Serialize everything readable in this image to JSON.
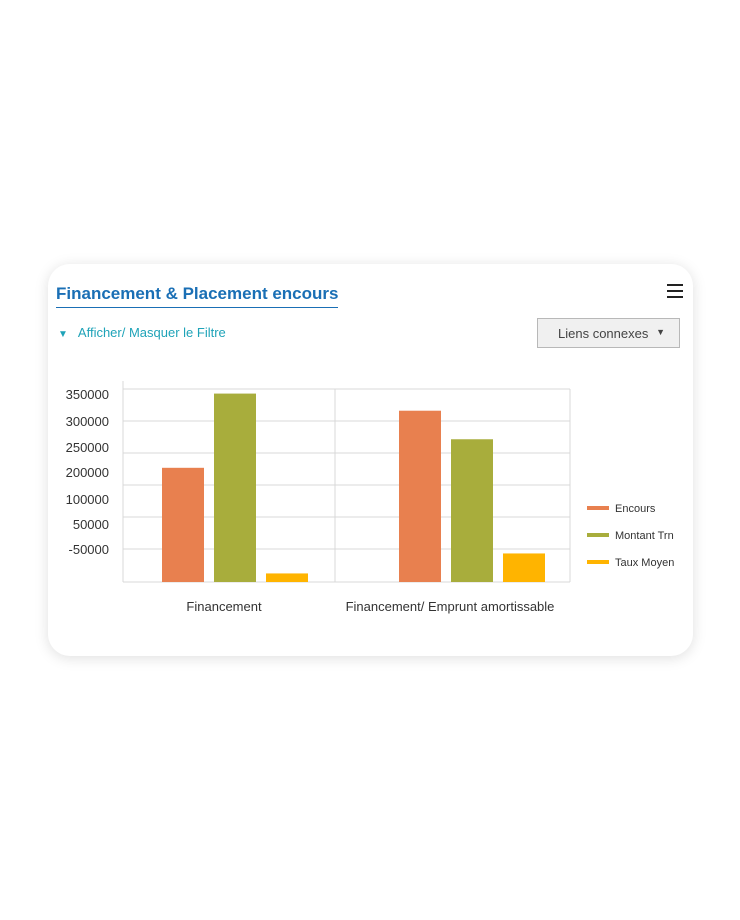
{
  "card": {
    "title": "Financement & Placement encours",
    "filter_toggle": "Afficher/ Masquer le Filtre",
    "links_select": "Liens connexes"
  },
  "colors": {
    "title": "#1a6fb5",
    "filter": "#1fa3b8",
    "encours": "#e8804f",
    "montant": "#a8ad3c",
    "taux": "#ffb400"
  },
  "chart_data": {
    "type": "bar",
    "categories": [
      "Financement",
      "Financement/ Emprunt amortissable"
    ],
    "series": [
      {
        "name": "Encours",
        "values": [
          200000,
          300000
        ]
      },
      {
        "name": "Montant Trn",
        "values": [
          330000,
          250000
        ]
      },
      {
        "name": "Taux Moyen",
        "values": [
          15000,
          50000
        ]
      }
    ],
    "y_tick_labels": [
      "350000",
      "300000",
      "250000",
      "200000",
      "100000",
      "50000",
      "-50000"
    ],
    "ylim": [
      0,
      360000
    ],
    "grid": true,
    "legend_position": "right",
    "title": "",
    "xlabel": "",
    "ylabel": ""
  }
}
